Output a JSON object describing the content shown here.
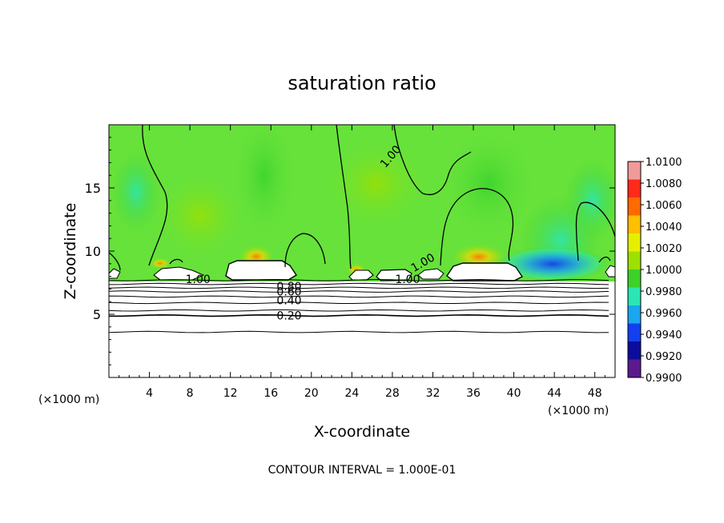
{
  "chart_data": {
    "type": "heatmap",
    "title": "saturation ratio",
    "xlabel": "X-coordinate",
    "ylabel": "Z-coordinate",
    "x_unit_left": "(×1000 m)",
    "x_unit_right": "(×1000 m)",
    "footer": "CONTOUR INTERVAL = 1.000E-01",
    "xlim": [
      0,
      50
    ],
    "ylim": [
      0,
      20
    ],
    "x_ticks": [
      4,
      8,
      12,
      16,
      20,
      24,
      28,
      32,
      36,
      40,
      44,
      48
    ],
    "x_tick_labels": [
      "4",
      "8",
      "12",
      "16",
      "20",
      "24",
      "28",
      "32",
      "36",
      "40",
      "44",
      "48"
    ],
    "y_ticks": [
      5,
      10,
      15
    ],
    "y_tick_labels": [
      "5",
      "10",
      "15"
    ],
    "colorbar": {
      "labels": [
        "1.0100",
        "1.0080",
        "1.0060",
        "1.0040",
        "1.0020",
        "1.0000",
        "0.9980",
        "0.9960",
        "0.9940",
        "0.9920",
        "0.9900"
      ],
      "colors": [
        "#f29a9a",
        "#ff2a1a",
        "#ff6a00",
        "#ffbf00",
        "#e7ef00",
        "#9ee000",
        "#3dd12a",
        "#2ae6b4",
        "#1aa6f0",
        "#1240f0",
        "#0c0c9c",
        "#5a1a8c"
      ]
    },
    "background_color": "#66e23a",
    "contour_labels": [
      {
        "text": "1.00",
        "x": 27.8,
        "y": 17.5,
        "rotate": -50
      },
      {
        "text": "1.00",
        "x": 8.8,
        "y": 7.8,
        "rotate": 0
      },
      {
        "text": "1.00",
        "x": 31.0,
        "y": 9.1,
        "rotate": -30
      },
      {
        "text": "1.00",
        "x": 29.5,
        "y": 7.8,
        "rotate": 0
      },
      {
        "text": "0.80",
        "x": 17.8,
        "y": 7.2,
        "rotate": 0
      },
      {
        "text": "0.60",
        "x": 17.8,
        "y": 6.8,
        "rotate": 0
      },
      {
        "text": "0.40",
        "x": 17.8,
        "y": 6.1,
        "rotate": 0
      },
      {
        "text": "0.20",
        "x": 17.8,
        "y": 4.9,
        "rotate": 0
      }
    ],
    "horizontal_contours": [
      7.7,
      7.4,
      7.1,
      6.8,
      6.4,
      5.9,
      5.3,
      4.9,
      3.6
    ],
    "legend_position": "right"
  }
}
